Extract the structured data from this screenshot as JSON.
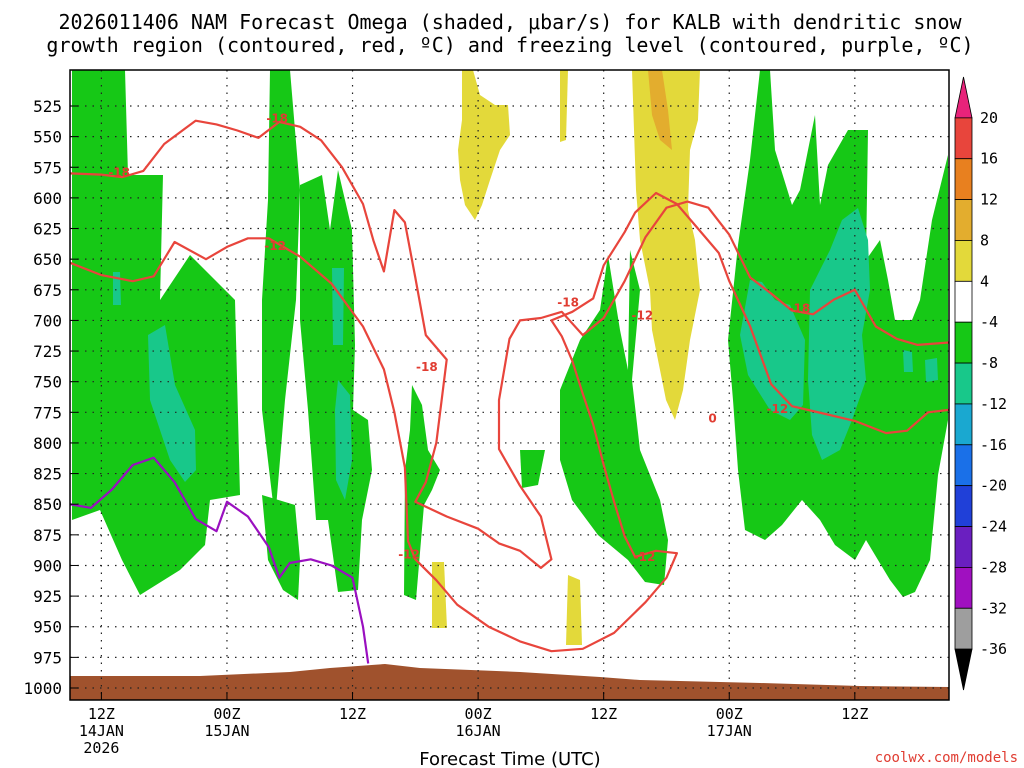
{
  "chart_data": {
    "type": "time-height cross section (shaded contour)",
    "title_line1": "2026011406 NAM Forecast Omega (shaded, μbar/s) for KALB with dendritic snow",
    "title_line2": "growth region (contoured, red, ºC) and freezing level (contoured, purple, ºC)",
    "xlabel": "Forecast Time (UTC)",
    "credit": "coolwx.com/models",
    "y_axis": {
      "type": "pressure",
      "units": "mb",
      "ticks": [
        525,
        550,
        575,
        600,
        625,
        650,
        675,
        700,
        725,
        750,
        775,
        800,
        825,
        850,
        875,
        900,
        925,
        950,
        975,
        1000
      ]
    },
    "x_axis": {
      "units": "forecast hour",
      "range": [
        3,
        87
      ],
      "ticks": [
        {
          "hour": 6,
          "label": "12Z",
          "line2": "14JAN",
          "line3": "2026"
        },
        {
          "hour": 18,
          "label": "00Z",
          "line2": "15JAN",
          "line3": ""
        },
        {
          "hour": 30,
          "label": "12Z",
          "line2": "",
          "line3": ""
        },
        {
          "hour": 42,
          "label": "00Z",
          "line2": "16JAN",
          "line3": ""
        },
        {
          "hour": 54,
          "label": "12Z",
          "line2": "",
          "line3": ""
        },
        {
          "hour": 66,
          "label": "00Z",
          "line2": "17JAN",
          "line3": ""
        },
        {
          "hour": 78,
          "label": "12Z",
          "line2": "",
          "line3": ""
        }
      ]
    },
    "colorbar": {
      "labels": [
        "20",
        "16",
        "12",
        "8",
        "4",
        "-4",
        "-8",
        "-12",
        "-16",
        "-20",
        "-24",
        "-28",
        "-32",
        "-36"
      ],
      "colors": [
        "#e8237a",
        "#e8453c",
        "#e8801f",
        "#e3ad2e",
        "#e3d93a",
        "#ffffff",
        "#16c816",
        "#18c88a",
        "#1aa8d0",
        "#1a70e8",
        "#2040d8",
        "#6a1fc0",
        "#a010c0",
        "#9e9e9e",
        "#000000"
      ]
    },
    "contour_labels": [
      {
        "text": "-18",
        "hour": 7.7,
        "p": 580
      },
      {
        "text": "-18",
        "hour": 22.8,
        "p": 536
      },
      {
        "text": "-12",
        "hour": 22.6,
        "p": 640
      },
      {
        "text": "-18",
        "hour": 37.1,
        "p": 739
      },
      {
        "text": "-12",
        "hour": 35.4,
        "p": 892
      },
      {
        "text": "-18",
        "hour": 50.6,
        "p": 686
      },
      {
        "text": "-12",
        "hour": 57.7,
        "p": 697
      },
      {
        "text": "-12",
        "hour": 57.9,
        "p": 894
      },
      {
        "text": "-12",
        "hour": 70.6,
        "p": 773
      },
      {
        "text": "-18",
        "hour": 72.7,
        "p": 691
      },
      {
        "text": "0",
        "hour": 64.4,
        "p": 781
      }
    ],
    "series": [
      {
        "name": "Dendritic growth -12C (red)",
        "points": [
          [
            3,
            653
          ],
          [
            6,
            663
          ],
          [
            9,
            668
          ],
          [
            11,
            664
          ],
          [
            13,
            636
          ],
          [
            16,
            650
          ],
          [
            18,
            640
          ],
          [
            20,
            633
          ],
          [
            22,
            633
          ],
          [
            25,
            648
          ],
          [
            28,
            670
          ],
          [
            31,
            705
          ],
          [
            33,
            740
          ],
          [
            34,
            775
          ],
          [
            35,
            820
          ],
          [
            35.3,
            880
          ],
          [
            36,
            895
          ],
          [
            38,
            912
          ],
          [
            40,
            932
          ],
          [
            43,
            950
          ],
          [
            46,
            962
          ],
          [
            49,
            970
          ],
          [
            52,
            968
          ],
          [
            55,
            955
          ],
          [
            58,
            930
          ],
          [
            60,
            910
          ],
          [
            61,
            890
          ],
          [
            59,
            888
          ],
          [
            57,
            893
          ],
          [
            56,
            876
          ],
          [
            55,
            848
          ],
          [
            54,
            818
          ],
          [
            53,
            785
          ],
          [
            52,
            760
          ],
          [
            51,
            733
          ],
          [
            50,
            713
          ],
          [
            49,
            700
          ],
          [
            51,
            693
          ],
          [
            53,
            682
          ],
          [
            54,
            655
          ],
          [
            56,
            628
          ],
          [
            57,
            612
          ],
          [
            59,
            596
          ],
          [
            61,
            605
          ],
          [
            63,
            625
          ],
          [
            65,
            645
          ],
          [
            66,
            668
          ],
          [
            68,
            705
          ],
          [
            70,
            752
          ],
          [
            72,
            770
          ],
          [
            75,
            776
          ],
          [
            78,
            782
          ],
          [
            81,
            792
          ],
          [
            83,
            790
          ],
          [
            85,
            775
          ],
          [
            87,
            773
          ]
        ]
      },
      {
        "name": "Dendritic growth -18C (red)",
        "points": [
          [
            3,
            580
          ],
          [
            6,
            581
          ],
          [
            8,
            583
          ],
          [
            10,
            578
          ],
          [
            12,
            556
          ],
          [
            15,
            537
          ],
          [
            17,
            540
          ],
          [
            19,
            545
          ],
          [
            21,
            551
          ],
          [
            23,
            538
          ],
          [
            25,
            542
          ],
          [
            27,
            553
          ],
          [
            29,
            575
          ],
          [
            31,
            605
          ],
          [
            32,
            635
          ],
          [
            33,
            660
          ],
          [
            34,
            610
          ],
          [
            35,
            620
          ],
          [
            36,
            665
          ],
          [
            37,
            712
          ],
          [
            39,
            732
          ],
          [
            38,
            800
          ],
          [
            37,
            832
          ],
          [
            36,
            848
          ],
          [
            39,
            860
          ],
          [
            42,
            870
          ],
          [
            44,
            882
          ],
          [
            46,
            888
          ],
          [
            48,
            902
          ],
          [
            49,
            895
          ],
          [
            48,
            860
          ],
          [
            46,
            835
          ],
          [
            44,
            805
          ],
          [
            44,
            765
          ],
          [
            45,
            715
          ],
          [
            46,
            700
          ],
          [
            48,
            698
          ],
          [
            50,
            693
          ],
          [
            52,
            712
          ],
          [
            54,
            698
          ],
          [
            56,
            668
          ],
          [
            58,
            632
          ],
          [
            60,
            608
          ],
          [
            62,
            603
          ],
          [
            64,
            608
          ],
          [
            66,
            630
          ],
          [
            68,
            665
          ],
          [
            70,
            678
          ],
          [
            72,
            692
          ],
          [
            74,
            695
          ],
          [
            76,
            683
          ],
          [
            78,
            675
          ],
          [
            80,
            705
          ],
          [
            82,
            715
          ],
          [
            84,
            720
          ],
          [
            87,
            718
          ]
        ]
      },
      {
        "name": "Freezing level 0C (purple)",
        "points": [
          [
            3,
            850
          ],
          [
            5,
            853
          ],
          [
            7,
            838
          ],
          [
            9,
            818
          ],
          [
            11,
            812
          ],
          [
            13,
            832
          ],
          [
            15,
            862
          ],
          [
            17,
            872
          ],
          [
            18,
            848
          ],
          [
            20,
            860
          ],
          [
            22,
            885
          ],
          [
            23,
            910
          ],
          [
            24,
            898
          ],
          [
            26,
            895
          ],
          [
            28,
            900
          ],
          [
            30,
            910
          ],
          [
            31,
            950
          ],
          [
            31.5,
            980
          ]
        ]
      }
    ]
  }
}
